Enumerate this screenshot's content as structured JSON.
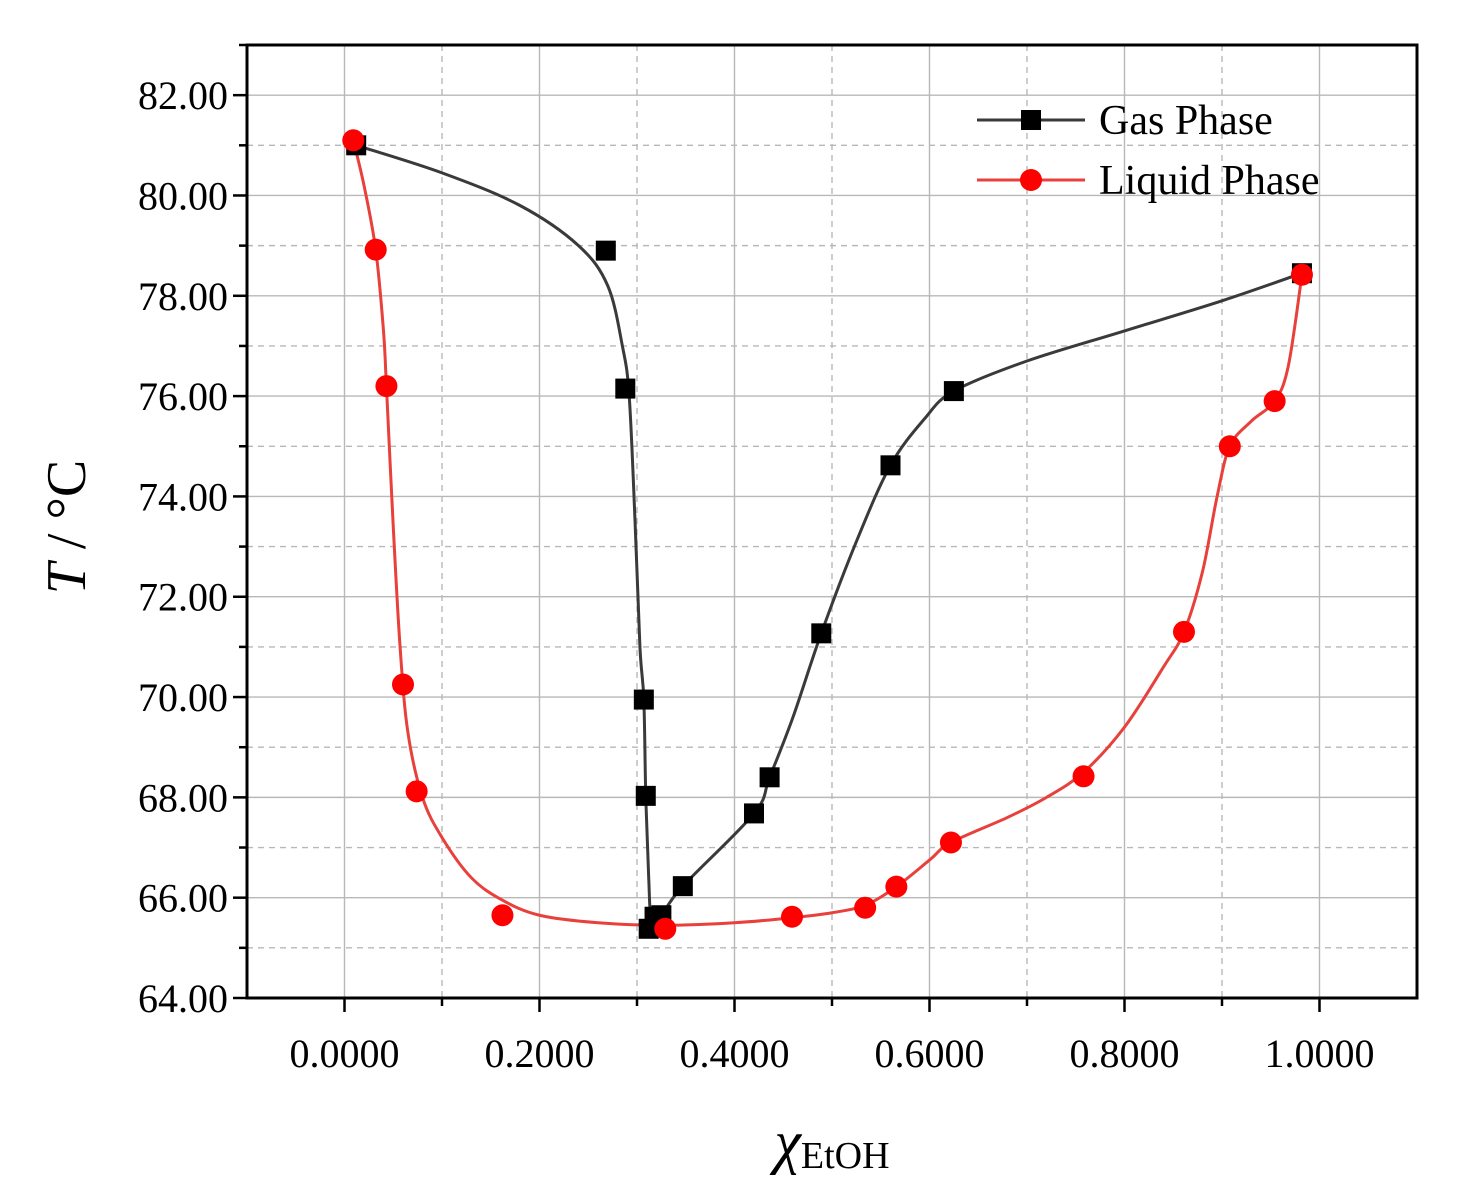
{
  "chart_data": {
    "type": "scatter",
    "ylabel": {
      "italic": "T",
      "rest": " / °C"
    },
    "xlabel": {
      "main": "χ",
      "sub": "EtOH"
    },
    "xlim": [
      -0.1,
      1.1
    ],
    "ylim": [
      64,
      83
    ],
    "x_ticks": [
      "0.0000",
      "0.2000",
      "0.4000",
      "0.6000",
      "0.8000",
      "1.0000"
    ],
    "y_ticks": [
      "64.00",
      "66.00",
      "68.00",
      "70.00",
      "72.00",
      "74.00",
      "76.00",
      "78.00",
      "80.00",
      "82.00"
    ],
    "grid": true,
    "legend_position": "top-right",
    "series": [
      {
        "name": "Gas Phase",
        "color": "#000000",
        "line_color": "#3a3a3a",
        "marker": "square",
        "points": [
          [
            0.012,
            81.0
          ],
          [
            0.268,
            78.9
          ],
          [
            0.288,
            76.15
          ],
          [
            0.307,
            69.95
          ],
          [
            0.309,
            68.03
          ],
          [
            0.312,
            65.38
          ],
          [
            0.318,
            65.62
          ],
          [
            0.325,
            65.65
          ],
          [
            0.347,
            66.23
          ],
          [
            0.42,
            67.68
          ],
          [
            0.436,
            68.4
          ],
          [
            0.489,
            71.27
          ],
          [
            0.56,
            74.62
          ],
          [
            0.625,
            76.1
          ],
          [
            0.982,
            78.45
          ]
        ],
        "curve": [
          [
            0.012,
            81.0
          ],
          [
            0.1,
            80.45
          ],
          [
            0.18,
            79.8
          ],
          [
            0.24,
            79.0
          ],
          [
            0.27,
            78.2
          ],
          [
            0.285,
            77.0
          ],
          [
            0.292,
            76.0
          ],
          [
            0.298,
            73.5
          ],
          [
            0.303,
            71.0
          ],
          [
            0.307,
            69.95
          ],
          [
            0.309,
            68.03
          ],
          [
            0.312,
            66.4
          ],
          [
            0.315,
            65.5
          ],
          [
            0.325,
            65.65
          ],
          [
            0.347,
            66.23
          ],
          [
            0.42,
            67.68
          ],
          [
            0.436,
            68.4
          ],
          [
            0.46,
            69.6
          ],
          [
            0.489,
            71.27
          ],
          [
            0.525,
            73.1
          ],
          [
            0.56,
            74.62
          ],
          [
            0.595,
            75.55
          ],
          [
            0.625,
            76.1
          ],
          [
            0.7,
            76.7
          ],
          [
            0.8,
            77.3
          ],
          [
            0.9,
            77.9
          ],
          [
            0.982,
            78.45
          ]
        ]
      },
      {
        "name": "Liquid Phase",
        "color": "#ff0000",
        "line_color": "#e8403a",
        "marker": "circle",
        "points": [
          [
            0.009,
            81.1
          ],
          [
            0.032,
            78.92
          ],
          [
            0.043,
            76.2
          ],
          [
            0.06,
            70.25
          ],
          [
            0.074,
            68.12
          ],
          [
            0.162,
            65.65
          ],
          [
            0.329,
            65.38
          ],
          [
            0.459,
            65.62
          ],
          [
            0.534,
            65.8
          ],
          [
            0.566,
            66.22
          ],
          [
            0.622,
            67.1
          ],
          [
            0.758,
            68.42
          ],
          [
            0.861,
            71.3
          ],
          [
            0.908,
            75.0
          ],
          [
            0.954,
            75.9
          ],
          [
            0.982,
            78.42
          ]
        ],
        "curve": [
          [
            0.009,
            81.1
          ],
          [
            0.02,
            80.2
          ],
          [
            0.032,
            78.92
          ],
          [
            0.04,
            77.3
          ],
          [
            0.043,
            76.2
          ],
          [
            0.05,
            73.4
          ],
          [
            0.057,
            71.0
          ],
          [
            0.065,
            69.3
          ],
          [
            0.08,
            68.0
          ],
          [
            0.1,
            67.2
          ],
          [
            0.13,
            66.4
          ],
          [
            0.162,
            65.95
          ],
          [
            0.2,
            65.65
          ],
          [
            0.26,
            65.5
          ],
          [
            0.329,
            65.45
          ],
          [
            0.4,
            65.5
          ],
          [
            0.459,
            65.6
          ],
          [
            0.5,
            65.7
          ],
          [
            0.534,
            65.85
          ],
          [
            0.566,
            66.22
          ],
          [
            0.6,
            66.75
          ],
          [
            0.622,
            67.1
          ],
          [
            0.68,
            67.6
          ],
          [
            0.72,
            68.0
          ],
          [
            0.758,
            68.5
          ],
          [
            0.8,
            69.4
          ],
          [
            0.84,
            70.6
          ],
          [
            0.861,
            71.3
          ],
          [
            0.88,
            72.5
          ],
          [
            0.895,
            74.0
          ],
          [
            0.908,
            75.0
          ],
          [
            0.93,
            75.5
          ],
          [
            0.954,
            75.9
          ],
          [
            0.968,
            76.6
          ],
          [
            0.982,
            78.42
          ]
        ]
      }
    ]
  }
}
